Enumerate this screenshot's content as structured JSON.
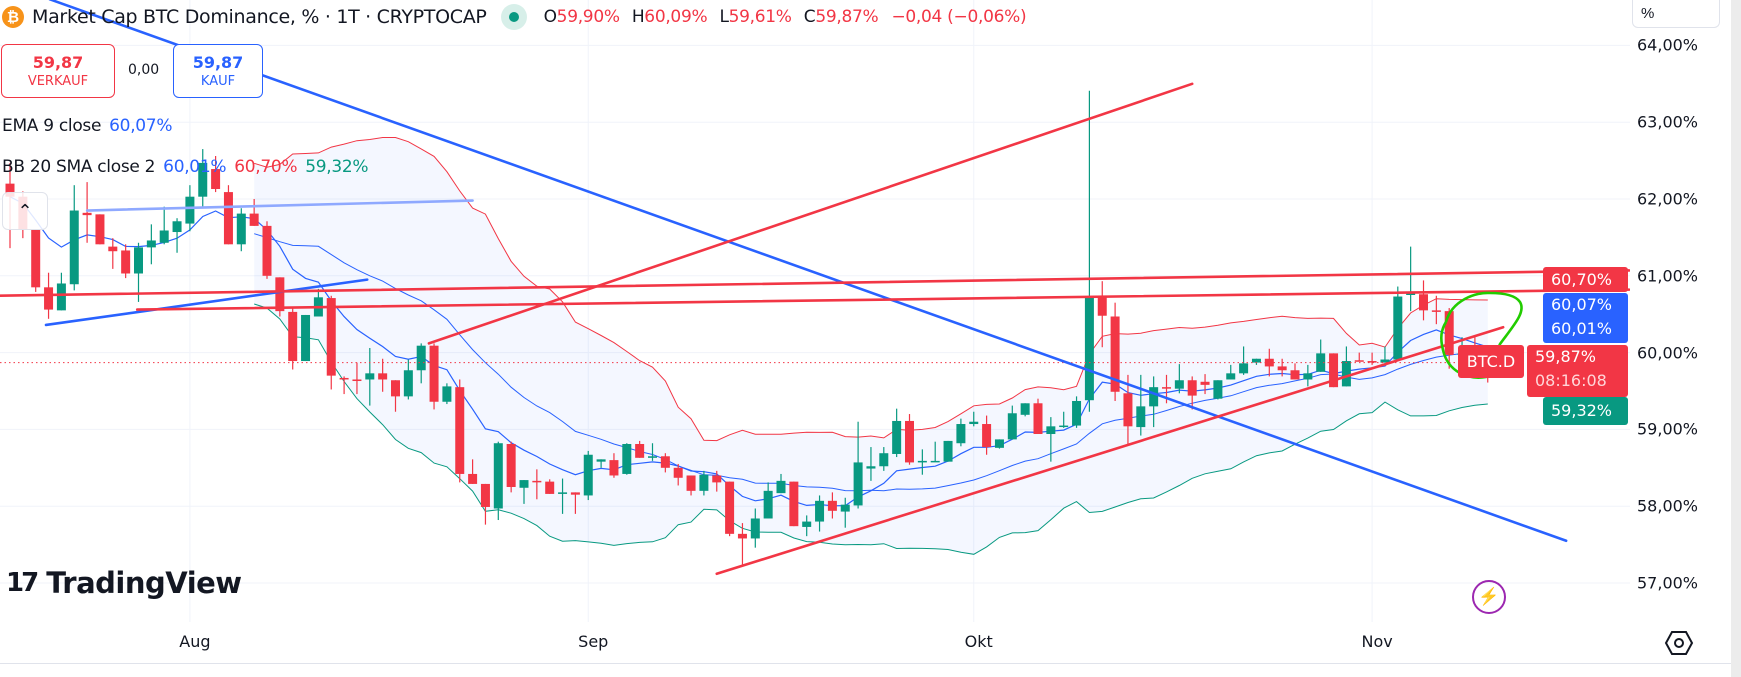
{
  "header": {
    "title": "Market Cap BTC Dominance, % · 1T · CRYPTOCAP",
    "ohlc": {
      "o_label": "O",
      "o": "59,90%",
      "h_label": "H",
      "h": "60,09%",
      "l_label": "L",
      "l": "59,61%",
      "c_label": "C",
      "c": "59,87%",
      "change": "−0,04 (−0,06%)"
    }
  },
  "trade": {
    "sell_price": "59,87",
    "sell_label": "VERKAUF",
    "spread": "0,00",
    "buy_price": "59,87",
    "buy_label": "KAUF"
  },
  "indicators": {
    "ema": {
      "label": "EMA 9 close",
      "value": "60,07%"
    },
    "bb": {
      "label": "BB 20 SMA close 2",
      "basis": "60,01%",
      "upper": "60,70%",
      "lower": "59,32%"
    }
  },
  "price_axis": {
    "unit": "%",
    "ticks": [
      {
        "value": 64,
        "label": "64,00%"
      },
      {
        "value": 63,
        "label": "63,00%"
      },
      {
        "value": 62,
        "label": "62,00%"
      },
      {
        "value": 61,
        "label": "61,00%"
      },
      {
        "value": 60,
        "label": "60,00%"
      },
      {
        "value": 59,
        "label": "59,00%"
      },
      {
        "value": 58,
        "label": "58,00%"
      },
      {
        "value": 57,
        "label": "57,00%"
      }
    ]
  },
  "badges": {
    "bb_upper": "60,70%",
    "ema": "60,07%",
    "bb_basis": "60,01%",
    "last": "59,87%",
    "countdown": "08:16:08",
    "bb_lower": "59,32%"
  },
  "symbol_label": "BTC.D",
  "logo": "TradingView",
  "colors": {
    "up": "#089981",
    "down": "#f23645",
    "ema": "#2962ff",
    "bb_basis": "#2962ff",
    "bb_upper": "#f23645",
    "bb_lower": "#089981",
    "drawing_blue": "#2962ff",
    "drawing_red": "#f23645",
    "highlight": "#22cc00"
  },
  "chart_data": {
    "type": "candlestick",
    "title": "Market Cap BTC Dominance, % · 1T · CRYPTOCAP",
    "ylabel": "%",
    "ylim": [
      56.6,
      64.2
    ],
    "last_close": 59.87,
    "x_ticks": [
      {
        "label": "Aug",
        "index": 14
      },
      {
        "label": "Sep",
        "index": 45
      },
      {
        "label": "Okt",
        "index": 75
      },
      {
        "label": "Nov",
        "index": 106
      }
    ],
    "candles_ohlc": [
      [
        62.2,
        62.47,
        61.36,
        62.03
      ],
      [
        62.03,
        62.1,
        61.49,
        61.6
      ],
      [
        61.6,
        61.6,
        60.79,
        60.85
      ],
      [
        60.85,
        61.04,
        60.44,
        60.56
      ],
      [
        60.55,
        61.04,
        60.55,
        60.9
      ],
      [
        60.89,
        62.18,
        60.81,
        61.85
      ],
      [
        61.82,
        62.22,
        61.43,
        61.79
      ],
      [
        61.8,
        61.8,
        61.41,
        61.41
      ],
      [
        61.38,
        61.49,
        61.09,
        61.32
      ],
      [
        61.33,
        61.41,
        60.97,
        61.03
      ],
      [
        61.03,
        61.43,
        60.66,
        61.37
      ],
      [
        61.37,
        61.67,
        61.15,
        61.46
      ],
      [
        61.43,
        61.9,
        61.41,
        61.59
      ],
      [
        61.57,
        61.75,
        61.3,
        61.71
      ],
      [
        61.68,
        62.18,
        61.58,
        62.03
      ],
      [
        62.03,
        62.65,
        61.9,
        62.47
      ],
      [
        62.39,
        62.56,
        62.09,
        62.13
      ],
      [
        62.09,
        62.18,
        61.41,
        61.41
      ],
      [
        61.41,
        61.88,
        61.32,
        61.81
      ],
      [
        61.81,
        62.0,
        61.65,
        61.65
      ],
      [
        61.65,
        61.71,
        60.96,
        61.0
      ],
      [
        60.98,
        60.98,
        60.47,
        60.54
      ],
      [
        60.53,
        60.59,
        59.78,
        59.89
      ],
      [
        59.89,
        60.49,
        59.89,
        60.49
      ],
      [
        60.47,
        60.83,
        60.47,
        60.72
      ],
      [
        60.71,
        60.74,
        59.52,
        59.7
      ],
      [
        59.67,
        59.69,
        59.46,
        59.65
      ],
      [
        59.65,
        59.87,
        59.46,
        59.63
      ],
      [
        59.65,
        60.06,
        59.31,
        59.73
      ],
      [
        59.73,
        59.92,
        59.49,
        59.65
      ],
      [
        59.64,
        59.64,
        59.23,
        59.43
      ],
      [
        59.43,
        59.91,
        59.39,
        59.77
      ],
      [
        59.77,
        60.12,
        59.6,
        60.09
      ],
      [
        60.09,
        60.12,
        59.26,
        59.36
      ],
      [
        59.36,
        59.6,
        59.33,
        59.56
      ],
      [
        59.55,
        59.65,
        58.31,
        58.42
      ],
      [
        58.42,
        58.61,
        58.29,
        58.29
      ],
      [
        58.29,
        58.29,
        57.76,
        57.99
      ],
      [
        57.97,
        58.84,
        57.82,
        58.82
      ],
      [
        58.81,
        58.84,
        58.18,
        58.25
      ],
      [
        58.24,
        58.34,
        58.03,
        58.34
      ],
      [
        58.33,
        58.48,
        58.09,
        58.32
      ],
      [
        58.32,
        58.35,
        58.16,
        58.16
      ],
      [
        58.16,
        58.36,
        57.9,
        58.18
      ],
      [
        58.18,
        58.18,
        57.9,
        58.15
      ],
      [
        58.14,
        58.72,
        58.08,
        58.67
      ],
      [
        58.58,
        58.61,
        58.5,
        58.61
      ],
      [
        58.6,
        58.69,
        58.37,
        58.4
      ],
      [
        58.42,
        58.82,
        58.41,
        58.81
      ],
      [
        58.81,
        58.85,
        58.63,
        58.63
      ],
      [
        58.63,
        58.82,
        58.59,
        58.65
      ],
      [
        58.65,
        58.69,
        58.44,
        58.5
      ],
      [
        58.5,
        58.55,
        58.27,
        58.37
      ],
      [
        58.4,
        58.4,
        58.14,
        58.2
      ],
      [
        58.2,
        58.46,
        58.14,
        58.41
      ],
      [
        58.4,
        58.46,
        58.19,
        58.31
      ],
      [
        58.32,
        58.32,
        57.61,
        57.64
      ],
      [
        57.64,
        57.78,
        57.24,
        57.58
      ],
      [
        57.58,
        57.97,
        57.46,
        57.84
      ],
      [
        57.84,
        58.31,
        57.84,
        58.2
      ],
      [
        58.17,
        58.42,
        58.17,
        58.33
      ],
      [
        58.32,
        58.32,
        57.74,
        57.74
      ],
      [
        57.73,
        57.88,
        57.61,
        57.8
      ],
      [
        57.8,
        58.14,
        57.67,
        58.07
      ],
      [
        58.07,
        58.18,
        57.84,
        57.94
      ],
      [
        57.93,
        58.11,
        57.72,
        58.02
      ],
      [
        58.01,
        59.1,
        57.97,
        58.57
      ],
      [
        58.49,
        58.77,
        58.33,
        58.52
      ],
      [
        58.52,
        58.77,
        58.46,
        58.69
      ],
      [
        58.68,
        59.27,
        58.64,
        59.11
      ],
      [
        59.11,
        59.2,
        58.54,
        58.57
      ],
      [
        58.57,
        58.74,
        58.41,
        58.59
      ],
      [
        58.58,
        58.84,
        58.58,
        58.59
      ],
      [
        58.58,
        58.85,
        58.58,
        58.85
      ],
      [
        58.82,
        59.14,
        58.78,
        59.07
      ],
      [
        59.07,
        59.23,
        59.04,
        59.1
      ],
      [
        59.07,
        59.18,
        58.67,
        58.77
      ],
      [
        58.76,
        58.87,
        58.75,
        58.87
      ],
      [
        58.87,
        59.31,
        58.87,
        59.21
      ],
      [
        59.19,
        59.34,
        59.17,
        59.34
      ],
      [
        59.34,
        59.4,
        58.94,
        58.94
      ],
      [
        58.94,
        59.16,
        58.58,
        59.04
      ],
      [
        59.04,
        59.23,
        59.02,
        59.05
      ],
      [
        59.05,
        59.43,
        59.02,
        59.37
      ],
      [
        59.38,
        63.41,
        59.23,
        60.72
      ],
      [
        60.72,
        60.93,
        60.07,
        60.48
      ],
      [
        60.47,
        60.65,
        59.37,
        59.49
      ],
      [
        59.47,
        59.71,
        58.81,
        59.04
      ],
      [
        59.03,
        59.71,
        58.92,
        59.3
      ],
      [
        59.3,
        59.69,
        59.03,
        59.55
      ],
      [
        59.55,
        59.71,
        59.34,
        59.54
      ],
      [
        59.53,
        59.85,
        59.47,
        59.64
      ],
      [
        59.64,
        59.69,
        59.26,
        59.44
      ],
      [
        59.62,
        59.72,
        59.46,
        59.58
      ],
      [
        59.4,
        59.64,
        59.39,
        59.64
      ],
      [
        59.65,
        59.84,
        59.65,
        59.73
      ],
      [
        59.73,
        60.08,
        59.71,
        59.86
      ],
      [
        59.87,
        59.92,
        59.84,
        59.92
      ],
      [
        59.92,
        60.05,
        59.69,
        59.82
      ],
      [
        59.82,
        59.92,
        59.69,
        59.77
      ],
      [
        59.77,
        59.86,
        59.65,
        59.65
      ],
      [
        59.65,
        59.84,
        59.56,
        59.73
      ],
      [
        59.75,
        60.17,
        59.75,
        59.99
      ],
      [
        59.99,
        59.99,
        59.55,
        59.55
      ],
      [
        59.56,
        60.08,
        59.56,
        59.89
      ],
      [
        59.9,
        60.0,
        59.89,
        59.89
      ],
      [
        59.89,
        60.0,
        59.84,
        59.87
      ],
      [
        59.87,
        60.08,
        59.87,
        59.91
      ],
      [
        59.91,
        60.86,
        59.91,
        60.73
      ],
      [
        60.75,
        61.38,
        60.54,
        60.77
      ],
      [
        60.76,
        60.94,
        60.42,
        60.55
      ],
      [
        60.55,
        60.74,
        60.37,
        60.53
      ],
      [
        60.54,
        60.58,
        59.79,
        59.97
      ],
      [
        59.98,
        60.2,
        59.67,
        59.99
      ],
      [
        59.98,
        60.2,
        59.81,
        59.9
      ],
      [
        59.9,
        60.09,
        59.61,
        59.87
      ]
    ],
    "indicators": {
      "ema_period": 9,
      "bb_period": 20,
      "bb_mult": 2
    },
    "drawings": [
      {
        "name": "descending-trendline",
        "color": "#2962ff",
        "p1": [
          3.1,
          64.6
        ],
        "p2": [
          121.1,
          57.55
        ]
      },
      {
        "name": "upper-channel-line",
        "color": "#8fa9ff",
        "p1": [
          6.0,
          61.85
        ],
        "p2": [
          36.0,
          61.98
        ]
      },
      {
        "name": "lower-support-line",
        "color": "#2962ff",
        "p1": [
          2.8,
          60.36
        ],
        "p2": [
          27.8,
          60.95
        ]
      },
      {
        "name": "resistance-line-upper",
        "color": "#f23645",
        "p1": [
          -1,
          60.74
        ],
        "p2": [
          126,
          61.07
        ]
      },
      {
        "name": "resistance-line-lower",
        "color": "#f23645",
        "p1": [
          9.9,
          60.56
        ],
        "p2": [
          126,
          60.82
        ]
      },
      {
        "name": "rising-line-upper",
        "color": "#f23645",
        "p1": [
          32.6,
          60.12
        ],
        "p2": [
          92.0,
          63.5
        ]
      },
      {
        "name": "rising-support-line",
        "color": "#f23645",
        "p1": [
          55.0,
          57.12
        ],
        "p2": [
          116.2,
          60.33
        ]
      }
    ]
  }
}
